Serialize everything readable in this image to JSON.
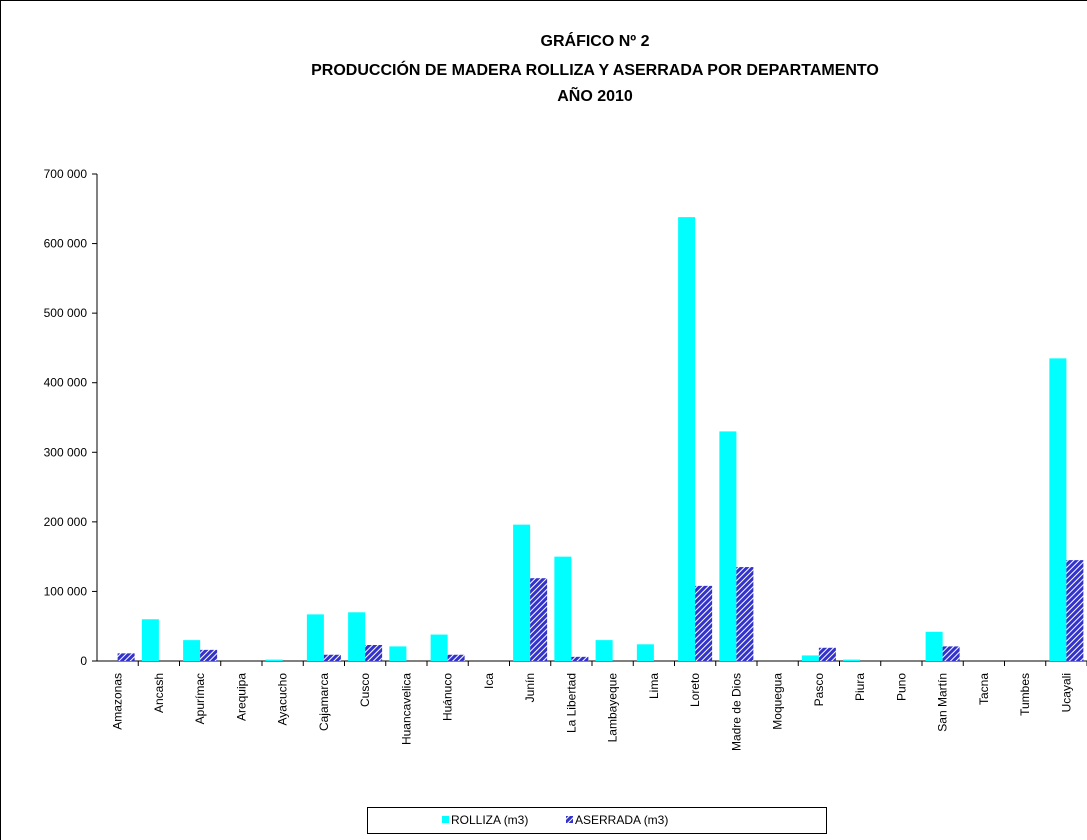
{
  "chart_data": {
    "type": "bar",
    "title": [
      "GRÁFICO Nº 2",
      "PRODUCCIÓN DE MADERA ROLLIZA  Y ASERRADA POR DEPARTAMENTO",
      "AÑO 2010"
    ],
    "categories": [
      "Amazonas",
      "Ancash",
      "Apurímac",
      "Arequipa",
      "Ayacucho",
      "Cajamarca",
      "Cusco",
      "Huancavelica",
      "Huánuco",
      "Ica",
      "Junín",
      "La Libertad",
      "Lambayeque",
      "Lima",
      "Loreto",
      "Madre de Dios",
      "Moquegua",
      "Pasco",
      "Piura",
      "Puno",
      "San Martín",
      "Tacna",
      "Tumbes",
      "Ucayali"
    ],
    "series": [
      {
        "name": "ROLLIZA (m3)",
        "color": "#00ffff",
        "values": [
          0,
          60000,
          30000,
          0,
          2000,
          67000,
          70000,
          21000,
          38000,
          0,
          196000,
          150000,
          30000,
          24000,
          638000,
          330000,
          0,
          8000,
          2000,
          0,
          42000,
          0,
          0,
          435000
        ]
      },
      {
        "name": "ASERRADA (m3)",
        "color": "#3333cc",
        "hatch": true,
        "values": [
          11000,
          0,
          16000,
          0,
          0,
          9000,
          23000,
          0,
          9000,
          0,
          119000,
          6000,
          0,
          0,
          108000,
          135000,
          0,
          19000,
          0,
          0,
          21000,
          0,
          0,
          145000
        ]
      }
    ],
    "ylim": [
      0,
      700000
    ],
    "yticks": [
      0,
      {
        "value": 100000,
        "label": "100 000"
      },
      {
        "value": 200000,
        "label": "200 000"
      },
      {
        "value": 300000,
        "label": "300 000"
      },
      {
        "value": 400000,
        "label": "400 000"
      },
      {
        "value": 500000,
        "label": "500 000"
      },
      {
        "value": 600000,
        "label": "600 000"
      },
      {
        "value": 700000,
        "label": "700 000"
      }
    ],
    "legend": "bottom"
  }
}
